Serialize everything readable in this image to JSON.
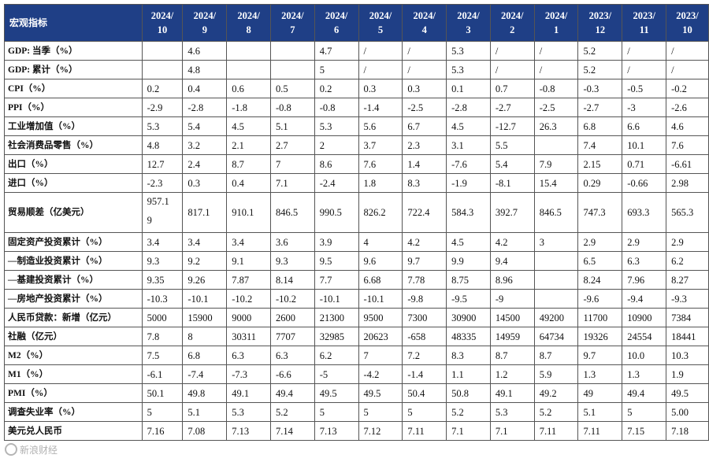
{
  "table": {
    "header_label": "宏观指标",
    "periods": [
      {
        "year": "2024/",
        "month": "10"
      },
      {
        "year": "2024/",
        "month": "9"
      },
      {
        "year": "2024/",
        "month": "8"
      },
      {
        "year": "2024/",
        "month": "7"
      },
      {
        "year": "2024/",
        "month": "6"
      },
      {
        "year": "2024/",
        "month": "5"
      },
      {
        "year": "2024/",
        "month": "4"
      },
      {
        "year": "2024/",
        "month": "3"
      },
      {
        "year": "2024/",
        "month": "2"
      },
      {
        "year": "2024/",
        "month": "1"
      },
      {
        "year": "2023/",
        "month": "12"
      },
      {
        "year": "2023/",
        "month": "11"
      },
      {
        "year": "2023/",
        "month": "10"
      }
    ],
    "rows": [
      {
        "label": "GDP: 当季（%）",
        "values": [
          "",
          "4.6",
          "",
          "",
          "4.7",
          "/",
          "/",
          "5.3",
          "/",
          "/",
          "5.2",
          "/",
          "/"
        ]
      },
      {
        "label": "GDP: 累计（%）",
        "values": [
          "",
          "4.8",
          "",
          "",
          "5",
          "/",
          "/",
          "5.3",
          "/",
          "/",
          "5.2",
          "/",
          "/"
        ]
      },
      {
        "label": "CPI（%）",
        "values": [
          "0.2",
          "0.4",
          "0.6",
          "0.5",
          "0.2",
          "0.3",
          "0.3",
          "0.1",
          "0.7",
          "-0.8",
          "-0.3",
          "-0.5",
          "-0.2"
        ]
      },
      {
        "label": "PPI（%）",
        "values": [
          "-2.9",
          "-2.8",
          "-1.8",
          "-0.8",
          "-0.8",
          "-1.4",
          "-2.5",
          "-2.8",
          "-2.7",
          "-2.5",
          "-2.7",
          "-3",
          "-2.6"
        ]
      },
      {
        "label": "工业增加值（%）",
        "values": [
          "5.3",
          "5.4",
          "4.5",
          "5.1",
          "5.3",
          "5.6",
          "6.7",
          "4.5",
          "-12.7",
          "26.3",
          "6.8",
          "6.6",
          "4.6"
        ]
      },
      {
        "label": "社会消费品零售（%）",
        "values": [
          "4.8",
          "3.2",
          "2.1",
          "2.7",
          "2",
          "3.7",
          "2.3",
          "3.1",
          "5.5",
          "",
          "7.4",
          "10.1",
          "7.6"
        ]
      },
      {
        "label": "出口（%）",
        "values": [
          "12.7",
          "2.4",
          "8.7",
          "7",
          "8.6",
          "7.6",
          "1.4",
          "-7.6",
          "5.4",
          "7.9",
          "2.15",
          "0.71",
          "-6.61"
        ]
      },
      {
        "label": "进口（%）",
        "values": [
          "-2.3",
          "0.3",
          "0.4",
          "7.1",
          "-2.4",
          "1.8",
          "8.3",
          "-1.9",
          "-8.1",
          "15.4",
          "0.29",
          "-0.66",
          "2.98"
        ]
      },
      {
        "label": "贸易顺差（亿美元）",
        "tall": true,
        "values": [
          "957.1\n9",
          "817.1",
          "910.1",
          "846.5",
          "990.5",
          "826.2",
          "722.4",
          "584.3",
          "392.7",
          "846.5",
          "747.3",
          "693.3",
          "565.3"
        ]
      },
      {
        "label": "固定资产投资累计（%）",
        "values": [
          "3.4",
          "3.4",
          "3.4",
          "3.6",
          "3.9",
          "4",
          "4.2",
          "4.5",
          "4.2",
          "3",
          "2.9",
          "2.9",
          "2.9"
        ]
      },
      {
        "label": "—制造业投资累计（%）",
        "values": [
          "9.3",
          "9.2",
          "9.1",
          "9.3",
          "9.5",
          "9.6",
          "9.7",
          "9.9",
          "9.4",
          "",
          "6.5",
          "6.3",
          "6.2"
        ]
      },
      {
        "label": "—基建投资累计（%）",
        "values": [
          "9.35",
          "9.26",
          "7.87",
          "8.14",
          "7.7",
          "6.68",
          "7.78",
          "8.75",
          "8.96",
          "",
          "8.24",
          "7.96",
          "8.27"
        ]
      },
      {
        "label": "—房地产投资累计（%）",
        "values": [
          "-10.3",
          "-10.1",
          "-10.2",
          "-10.2",
          "-10.1",
          "-10.1",
          "-9.8",
          "-9.5",
          "-9",
          "",
          "-9.6",
          "-9.4",
          "-9.3"
        ]
      },
      {
        "label": "人民币贷款：新增（亿元）",
        "values": [
          "5000",
          "15900",
          "9000",
          "2600",
          "21300",
          "9500",
          "7300",
          "30900",
          "14500",
          "49200",
          "11700",
          "10900",
          "7384"
        ]
      },
      {
        "label": "社融（亿元）",
        "values": [
          "7.8",
          "8",
          "30311",
          "7707",
          "32985",
          "20623",
          "-658",
          "48335",
          "14959",
          "64734",
          "19326",
          "24554",
          "18441"
        ]
      },
      {
        "label": "M2（%）",
        "values": [
          "7.5",
          "6.8",
          "6.3",
          "6.3",
          "6.2",
          "7",
          "7.2",
          "8.3",
          "8.7",
          "8.7",
          "9.7",
          "10.0",
          "10.3"
        ]
      },
      {
        "label": "M1（%）",
        "values": [
          "-6.1",
          "-7.4",
          "-7.3",
          "-6.6",
          "-5",
          "-4.2",
          "-1.4",
          "1.1",
          "1.2",
          "5.9",
          "1.3",
          "1.3",
          "1.9"
        ]
      },
      {
        "label": "PMI（%）",
        "values": [
          "50.1",
          "49.8",
          "49.1",
          "49.4",
          "49.5",
          "49.5",
          "50.4",
          "50.8",
          "49.1",
          "49.2",
          "49",
          "49.4",
          "49.5"
        ]
      },
      {
        "label": "调查失业率（%）",
        "values": [
          "5",
          "5.1",
          "5.3",
          "5.2",
          "5",
          "5",
          "5",
          "5.2",
          "5.3",
          "5.2",
          "5.1",
          "5",
          "5.00"
        ]
      },
      {
        "label": "美元兑人民币",
        "values": [
          "7.16",
          "7.08",
          "7.13",
          "7.14",
          "7.13",
          "7.12",
          "7.11",
          "7.1",
          "7.1",
          "7.11",
          "7.11",
          "7.15",
          "7.18"
        ]
      }
    ]
  },
  "watermark": {
    "text": "新浪财经"
  },
  "colors": {
    "header_bg": "#1f3f86",
    "header_text": "#ffffff",
    "border": "#555555"
  }
}
